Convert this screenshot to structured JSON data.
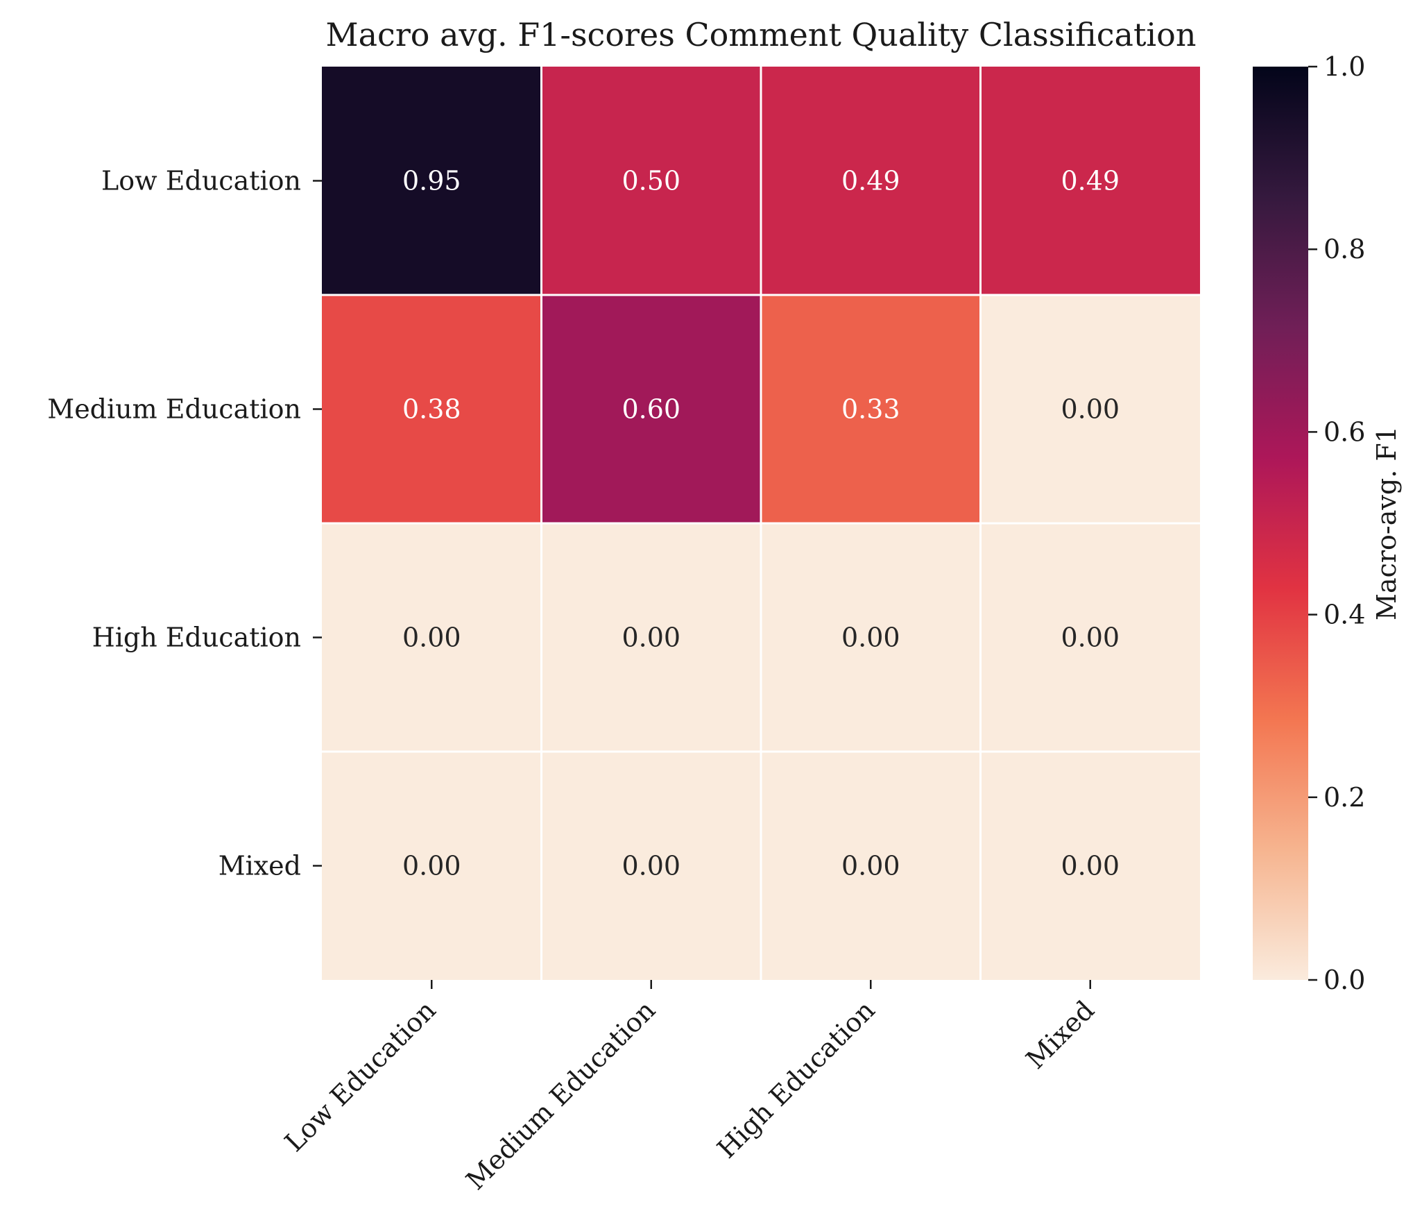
{
  "chart_data": {
    "type": "heatmap",
    "title": "Macro avg. F1-scores Comment Quality Classification",
    "xlabel": "",
    "ylabel": "",
    "x_categories": [
      "Low Education",
      "Medium Education",
      "High Education",
      "Mixed"
    ],
    "y_categories": [
      "Low Education",
      "Medium Education",
      "High Education",
      "Mixed"
    ],
    "values": [
      [
        0.95,
        0.5,
        0.49,
        0.49
      ],
      [
        0.38,
        0.6,
        0.33,
        0.0
      ],
      [
        0.0,
        0.0,
        0.0,
        0.0
      ],
      [
        0.0,
        0.0,
        0.0,
        0.0
      ]
    ],
    "value_labels": [
      [
        "0.95",
        "0.50",
        "0.49",
        "0.49"
      ],
      [
        "0.38",
        "0.60",
        "0.33",
        "0.00"
      ],
      [
        "0.00",
        "0.00",
        "0.00",
        "0.00"
      ],
      [
        "0.00",
        "0.00",
        "0.00",
        "0.00"
      ]
    ],
    "colorbar": {
      "label": "Macro-avg. F1",
      "range": [
        0.0,
        1.0
      ],
      "ticks": [
        0.0,
        0.2,
        0.4,
        0.6,
        0.8,
        1.0
      ],
      "tick_labels": [
        "0.0",
        "0.2",
        "0.4",
        "0.6",
        "0.8",
        "1.0"
      ]
    },
    "colormap": "rocket_r",
    "colormap_stops": [
      "#faebdd",
      "#f6b48f",
      "#f37651",
      "#e13342",
      "#ad1759",
      "#701f57",
      "#35193e",
      "#03051a"
    ],
    "grid_line_color": "#ffffff",
    "annotation_text_colors": {
      "light": "#ffffff",
      "dark": "#262626"
    }
  }
}
